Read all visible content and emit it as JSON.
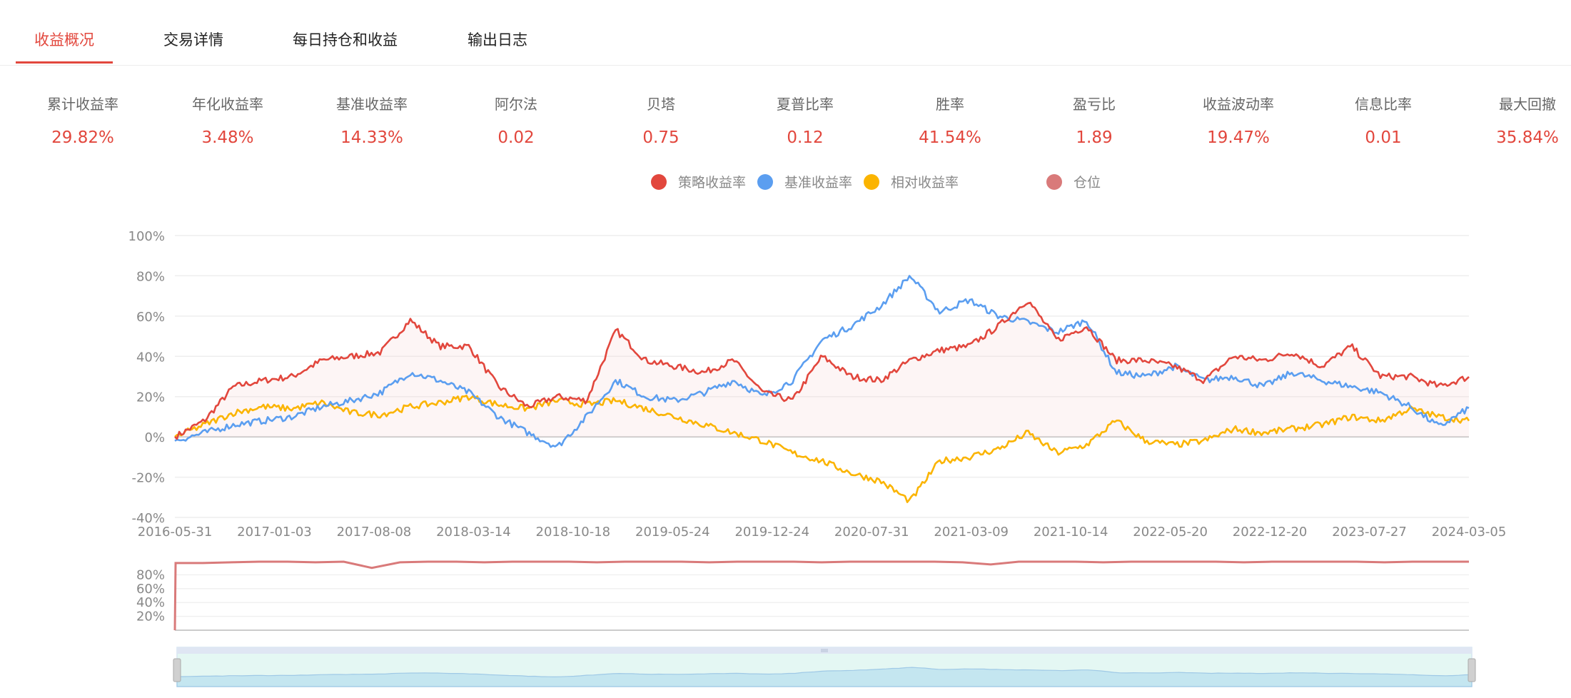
{
  "tabs": [
    {
      "label": "收益概况",
      "active": true
    },
    {
      "label": "交易详情",
      "active": false
    },
    {
      "label": "每日持仓和收益",
      "active": false
    },
    {
      "label": "输出日志",
      "active": false
    }
  ],
  "stats": [
    {
      "label": "累计收益率",
      "value": "29.82%"
    },
    {
      "label": "年化收益率",
      "value": "3.48%"
    },
    {
      "label": "基准收益率",
      "value": "14.33%"
    },
    {
      "label": "阿尔法",
      "value": "0.02"
    },
    {
      "label": "贝塔",
      "value": "0.75"
    },
    {
      "label": "夏普比率",
      "value": "0.12"
    },
    {
      "label": "胜率",
      "value": "41.54%"
    },
    {
      "label": "盈亏比",
      "value": "1.89"
    },
    {
      "label": "收益波动率",
      "value": "19.47%"
    },
    {
      "label": "信息比率",
      "value": "0.01"
    },
    {
      "label": "最大回撤",
      "value": "35.84%"
    }
  ],
  "legend": [
    {
      "name": "策略收益率",
      "color": "#e2473d"
    },
    {
      "name": "基准收益率",
      "color": "#5b9ef0"
    },
    {
      "name": "相对收益率",
      "color": "#fbb400"
    },
    {
      "name": "仓位",
      "color": "#d97a7a"
    }
  ],
  "chart_data": [
    {
      "type": "line",
      "x_ticks": [
        "2016-05-31",
        "2017-01-03",
        "2017-08-08",
        "2018-03-14",
        "2018-10-18",
        "2019-05-24",
        "2019-12-24",
        "2020-07-31",
        "2021-03-09",
        "2021-10-14",
        "2022-05-20",
        "2022-12-20",
        "2023-07-27",
        "2024-03-05"
      ],
      "y_ticks": [
        "100%",
        "80%",
        "60%",
        "40%",
        "20%",
        "0%",
        "-20%",
        "-40%"
      ],
      "ylim": [
        -40,
        100
      ],
      "grid": true,
      "legend_position": "top",
      "series": [
        {
          "name": "策略收益率",
          "color": "#e2473d",
          "values": [
            0,
            8,
            25,
            28,
            30,
            38,
            40,
            42,
            58,
            45,
            45,
            25,
            15,
            20,
            18,
            53,
            38,
            35,
            32,
            38,
            22,
            18,
            40,
            30,
            28,
            38,
            43,
            45,
            55,
            68,
            48,
            55,
            38,
            38,
            35,
            28,
            40,
            38,
            42,
            35,
            45,
            30,
            30,
            25,
            29.82
          ]
        },
        {
          "name": "基准收益率",
          "color": "#5b9ef0",
          "values": [
            -2,
            2,
            6,
            8,
            10,
            15,
            18,
            22,
            32,
            28,
            22,
            10,
            2,
            -5,
            10,
            28,
            20,
            18,
            22,
            28,
            20,
            28,
            48,
            55,
            65,
            80,
            62,
            68,
            60,
            57,
            52,
            58,
            32,
            30,
            35,
            28,
            30,
            25,
            32,
            28,
            25,
            22,
            15,
            5,
            14.33
          ]
        },
        {
          "name": "相对收益率",
          "color": "#fbb400",
          "values": [
            0,
            6,
            12,
            15,
            14,
            17,
            12,
            11,
            15,
            17,
            20,
            16,
            14,
            18,
            16,
            18,
            14,
            10,
            6,
            2,
            -2,
            -8,
            -12,
            -18,
            -22,
            -32,
            -12,
            -10,
            -6,
            2,
            -8,
            -4,
            8,
            -2,
            -4,
            -2,
            4,
            2,
            4,
            6,
            10,
            8,
            14,
            10,
            8
          ]
        }
      ]
    },
    {
      "type": "area",
      "name": "仓位",
      "y_ticks": [
        "80%",
        "60%",
        "40%",
        "20%"
      ],
      "ylim": [
        0,
        100
      ],
      "values": [
        0,
        97,
        98,
        99,
        99,
        98,
        99,
        90,
        98,
        99,
        99,
        98,
        99,
        99,
        99,
        98,
        99,
        99,
        99,
        98,
        99,
        99,
        99,
        98,
        99,
        99,
        99,
        99,
        98,
        95,
        99,
        99,
        99,
        98,
        99,
        99,
        99,
        99,
        98,
        99,
        99,
        99,
        99,
        98,
        99,
        99,
        99
      ]
    }
  ]
}
